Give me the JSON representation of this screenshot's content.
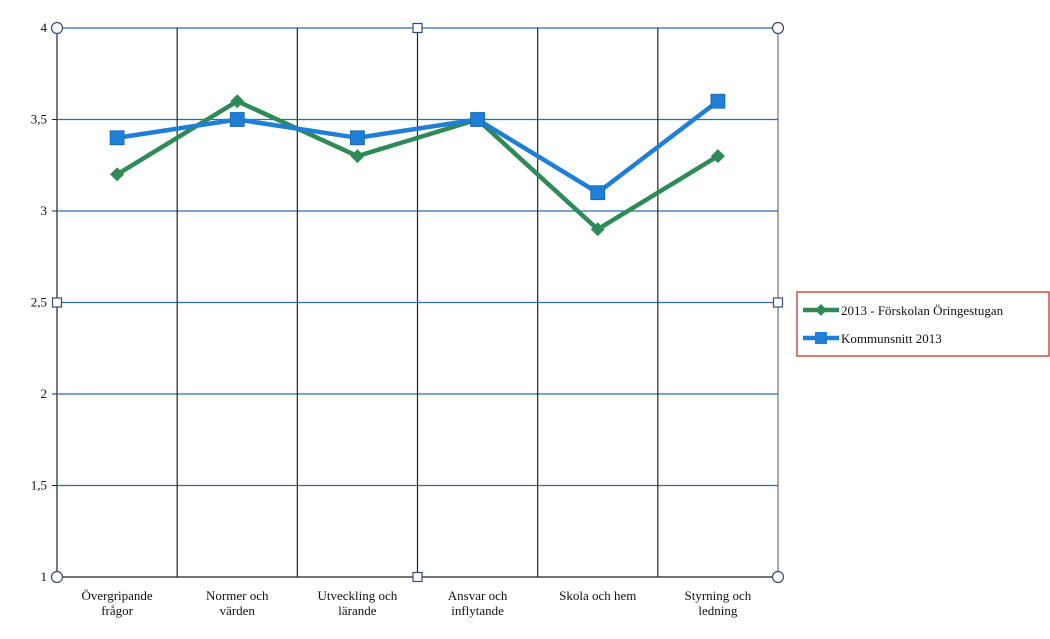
{
  "chart_data": {
    "type": "line",
    "categories": [
      [
        "Övergripande",
        "frågor"
      ],
      [
        "Normer och",
        "värden"
      ],
      [
        "Utveckling och",
        "lärande"
      ],
      [
        "Ansvar och",
        "inflytande"
      ],
      [
        "Skola och hem"
      ],
      [
        "Styrning och",
        "ledning"
      ]
    ],
    "series": [
      {
        "name": "2013 - Förskolan Öringestugan",
        "values": [
          3.2,
          3.6,
          3.3,
          3.5,
          2.9,
          3.3
        ],
        "color": "#2e8b57",
        "marker": "diamond"
      },
      {
        "name": "Kommunsnitt 2013",
        "values": [
          3.4,
          3.5,
          3.4,
          3.5,
          3.1,
          3.6
        ],
        "color": "#1f7fd6",
        "marker": "square"
      }
    ],
    "ylim": [
      1,
      4
    ],
    "yticks": [
      {
        "value": 1,
        "label": "1"
      },
      {
        "value": 1.5,
        "label": "1,5"
      },
      {
        "value": 2,
        "label": "2"
      },
      {
        "value": 2.5,
        "label": "2,5"
      },
      {
        "value": 3,
        "label": "3"
      },
      {
        "value": 3.5,
        "label": "3,5"
      },
      {
        "value": 4,
        "label": "4"
      }
    ],
    "grid": true,
    "legend_position": "right",
    "legend_border_color": "#c0392b",
    "gridline_color": "#2b6cb0"
  }
}
